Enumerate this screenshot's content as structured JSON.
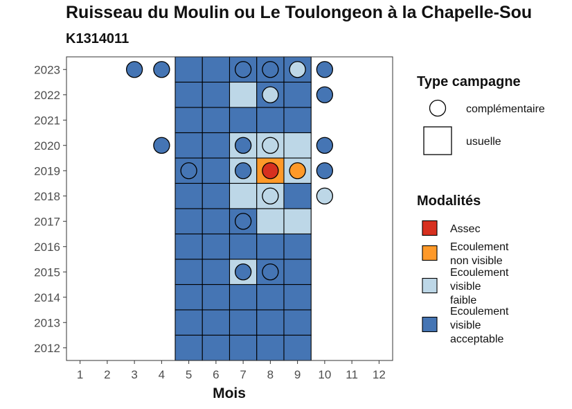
{
  "title": "Ruisseau du Moulin ou Le Toulongeon à la Chapelle-Sou",
  "subtitle": "K1314011",
  "colors": {
    "Assec": "#d7301f",
    "Ecoulement non visible": "#fe9929",
    "Ecoulement visible faible": "#bdd7e7",
    "Ecoulement visible acceptable": "#4575b4"
  },
  "chart_data": {
    "type": "heatmap",
    "xlabel": "Mois",
    "ylabel": "",
    "x_ticks": [
      "1",
      "2",
      "3",
      "4",
      "5",
      "6",
      "7",
      "8",
      "9",
      "10",
      "11",
      "12"
    ],
    "y_ticks": [
      "2012",
      "2013",
      "2014",
      "2015",
      "2016",
      "2017",
      "2018",
      "2019",
      "2020",
      "2021",
      "2022",
      "2023"
    ],
    "xlim": [
      0.5,
      12.5
    ],
    "ylim": [
      2011.5,
      2023.5
    ],
    "grid": false,
    "legend_position": "right",
    "usuelle": [
      {
        "year": 2023,
        "months": {
          "5": "Ecoulement visible acceptable",
          "6": "Ecoulement visible acceptable",
          "7": "Ecoulement visible acceptable",
          "8": "Ecoulement visible acceptable",
          "9": "Ecoulement visible acceptable"
        }
      },
      {
        "year": 2022,
        "months": {
          "5": "Ecoulement visible acceptable",
          "6": "Ecoulement visible acceptable",
          "7": "Ecoulement visible faible",
          "8": "Ecoulement visible acceptable",
          "9": "Ecoulement visible acceptable"
        }
      },
      {
        "year": 2021,
        "months": {
          "5": "Ecoulement visible acceptable",
          "6": "Ecoulement visible acceptable",
          "7": "Ecoulement visible acceptable",
          "8": "Ecoulement visible acceptable",
          "9": "Ecoulement visible acceptable"
        }
      },
      {
        "year": 2020,
        "months": {
          "5": "Ecoulement visible acceptable",
          "6": "Ecoulement visible acceptable",
          "7": "Ecoulement visible faible",
          "8": "Ecoulement visible faible",
          "9": "Ecoulement visible faible"
        }
      },
      {
        "year": 2019,
        "months": {
          "5": "Ecoulement visible acceptable",
          "6": "Ecoulement visible acceptable",
          "7": "Ecoulement visible faible",
          "8": "Ecoulement non visible",
          "9": "Ecoulement visible faible"
        }
      },
      {
        "year": 2018,
        "months": {
          "5": "Ecoulement visible acceptable",
          "6": "Ecoulement visible acceptable",
          "7": "Ecoulement visible faible",
          "8": "Ecoulement visible faible",
          "9": "Ecoulement visible acceptable"
        }
      },
      {
        "year": 2017,
        "months": {
          "5": "Ecoulement visible acceptable",
          "6": "Ecoulement visible acceptable",
          "7": "Ecoulement visible acceptable",
          "8": "Ecoulement visible faible",
          "9": "Ecoulement visible faible"
        }
      },
      {
        "year": 2016,
        "months": {
          "5": "Ecoulement visible acceptable",
          "6": "Ecoulement visible acceptable",
          "7": "Ecoulement visible acceptable",
          "8": "Ecoulement visible acceptable",
          "9": "Ecoulement visible acceptable"
        }
      },
      {
        "year": 2015,
        "months": {
          "5": "Ecoulement visible acceptable",
          "6": "Ecoulement visible acceptable",
          "7": "Ecoulement visible faible",
          "8": "Ecoulement visible acceptable",
          "9": "Ecoulement visible acceptable"
        }
      },
      {
        "year": 2014,
        "months": {
          "5": "Ecoulement visible acceptable",
          "6": "Ecoulement visible acceptable",
          "7": "Ecoulement visible acceptable",
          "8": "Ecoulement visible acceptable",
          "9": "Ecoulement visible acceptable"
        }
      },
      {
        "year": 2013,
        "months": {
          "5": "Ecoulement visible acceptable",
          "6": "Ecoulement visible acceptable",
          "7": "Ecoulement visible acceptable",
          "8": "Ecoulement visible acceptable",
          "9": "Ecoulement visible acceptable"
        }
      },
      {
        "year": 2012,
        "months": {
          "5": "Ecoulement visible acceptable",
          "6": "Ecoulement visible acceptable",
          "7": "Ecoulement visible acceptable",
          "8": "Ecoulement visible acceptable",
          "9": "Ecoulement visible acceptable"
        }
      }
    ],
    "complementaire": [
      {
        "year": 2023,
        "month": 3,
        "modalite": "Ecoulement visible acceptable"
      },
      {
        "year": 2023,
        "month": 4,
        "modalite": "Ecoulement visible acceptable"
      },
      {
        "year": 2023,
        "month": 7,
        "modalite": "Ecoulement visible acceptable"
      },
      {
        "year": 2023,
        "month": 8,
        "modalite": "Ecoulement visible acceptable"
      },
      {
        "year": 2023,
        "month": 9,
        "modalite": "Ecoulement visible faible"
      },
      {
        "year": 2023,
        "month": 10,
        "modalite": "Ecoulement visible acceptable"
      },
      {
        "year": 2022,
        "month": 8,
        "modalite": "Ecoulement visible faible"
      },
      {
        "year": 2022,
        "month": 10,
        "modalite": "Ecoulement visible acceptable"
      },
      {
        "year": 2020,
        "month": 4,
        "modalite": "Ecoulement visible acceptable"
      },
      {
        "year": 2020,
        "month": 7,
        "modalite": "Ecoulement visible acceptable"
      },
      {
        "year": 2020,
        "month": 8,
        "modalite": "Ecoulement visible faible"
      },
      {
        "year": 2020,
        "month": 10,
        "modalite": "Ecoulement visible acceptable"
      },
      {
        "year": 2019,
        "month": 5,
        "modalite": "Ecoulement visible acceptable"
      },
      {
        "year": 2019,
        "month": 7,
        "modalite": "Ecoulement visible acceptable"
      },
      {
        "year": 2019,
        "month": 8,
        "modalite": "Assec"
      },
      {
        "year": 2019,
        "month": 9,
        "modalite": "Ecoulement non visible"
      },
      {
        "year": 2019,
        "month": 10,
        "modalite": "Ecoulement visible acceptable"
      },
      {
        "year": 2018,
        "month": 8,
        "modalite": "Ecoulement visible faible"
      },
      {
        "year": 2018,
        "month": 10,
        "modalite": "Ecoulement visible faible"
      },
      {
        "year": 2017,
        "month": 7,
        "modalite": "Ecoulement visible acceptable"
      },
      {
        "year": 2015,
        "month": 7,
        "modalite": "Ecoulement visible acceptable"
      },
      {
        "year": 2015,
        "month": 8,
        "modalite": "Ecoulement visible acceptable"
      }
    ]
  },
  "legend": {
    "type_title": "Type campagne",
    "type_items": [
      {
        "label": "complémentaire",
        "shape": "circle"
      },
      {
        "label": "usuelle",
        "shape": "square"
      }
    ],
    "mod_title": "Modalités",
    "mod_items": [
      {
        "key": "Assec",
        "lines": [
          "Assec"
        ]
      },
      {
        "key": "Ecoulement non visible",
        "lines": [
          "Ecoulement",
          "non visible"
        ]
      },
      {
        "key": "Ecoulement visible faible",
        "lines": [
          "Ecoulement",
          "visible",
          "faible"
        ]
      },
      {
        "key": "Ecoulement visible acceptable",
        "lines": [
          "Ecoulement",
          "visible",
          "acceptable"
        ]
      }
    ]
  }
}
